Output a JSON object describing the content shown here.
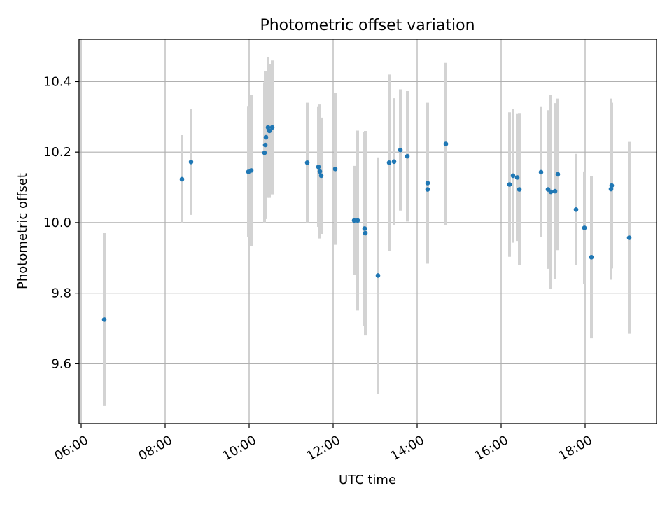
{
  "chart_data": {
    "type": "scatter",
    "title": "Photometric offset variation",
    "xlabel": "UTC time",
    "ylabel": "Photometric offset",
    "xlim": [
      "05:57",
      "19:42"
    ],
    "ylim": [
      9.43,
      10.52
    ],
    "grid": true,
    "x_ticks": [
      "06:00",
      "08:00",
      "10:00",
      "12:00",
      "14:00",
      "16:00",
      "18:00"
    ],
    "y_ticks": [
      9.6,
      9.8,
      10.0,
      10.2,
      10.4
    ],
    "y_tick_labels": [
      "9.6",
      "9.8",
      "10.0",
      "10.2",
      "10.4"
    ],
    "colors": {
      "point": "#1f77b4",
      "errorbar": "#d3d3d3",
      "grid": "#b0b0b0"
    },
    "series": [
      {
        "x": [
          "06:33",
          "08:24",
          "08:37",
          "09:59",
          "10:03",
          "10:22",
          "10:23",
          "10:24",
          "10:27",
          "10:29",
          "10:33",
          "11:23",
          "11:39",
          "11:41",
          "11:43",
          "12:03",
          "12:30",
          "12:35",
          "12:45",
          "12:46",
          "13:04",
          "13:20",
          "13:27",
          "13:36",
          "13:46",
          "14:15",
          "14:15",
          "14:41",
          "16:12",
          "16:17",
          "16:23",
          "16:26",
          "16:57",
          "17:07",
          "17:11",
          "17:17",
          "17:21",
          "17:47",
          "17:59",
          "18:09",
          "18:37",
          "18:38",
          "19:03"
        ],
        "y": [
          9.725,
          10.123,
          10.172,
          10.144,
          10.148,
          10.198,
          10.22,
          10.242,
          10.27,
          10.26,
          10.27,
          10.17,
          10.158,
          10.145,
          10.133,
          10.152,
          10.006,
          10.006,
          9.983,
          9.97,
          9.85,
          10.17,
          10.173,
          10.206,
          10.188,
          10.112,
          10.094,
          10.223,
          10.108,
          10.133,
          10.128,
          10.094,
          10.143,
          10.094,
          10.087,
          10.089,
          10.137,
          10.037,
          9.985,
          9.902,
          10.095,
          10.105,
          9.957
        ],
        "err": [
          0.245,
          0.125,
          0.15,
          0.185,
          0.215,
          0.2,
          0.21,
          0.185,
          0.2,
          0.19,
          0.19,
          0.17,
          0.17,
          0.19,
          0.165,
          0.215,
          0.155,
          0.255,
          0.275,
          0.29,
          0.335,
          0.25,
          0.18,
          0.172,
          0.185,
          0.228,
          0.21,
          0.23,
          0.205,
          0.19,
          0.18,
          0.215,
          0.185,
          0.225,
          0.275,
          0.25,
          0.215,
          0.158,
          0.16,
          0.23,
          0.257,
          0.235,
          0.272
        ]
      }
    ]
  }
}
